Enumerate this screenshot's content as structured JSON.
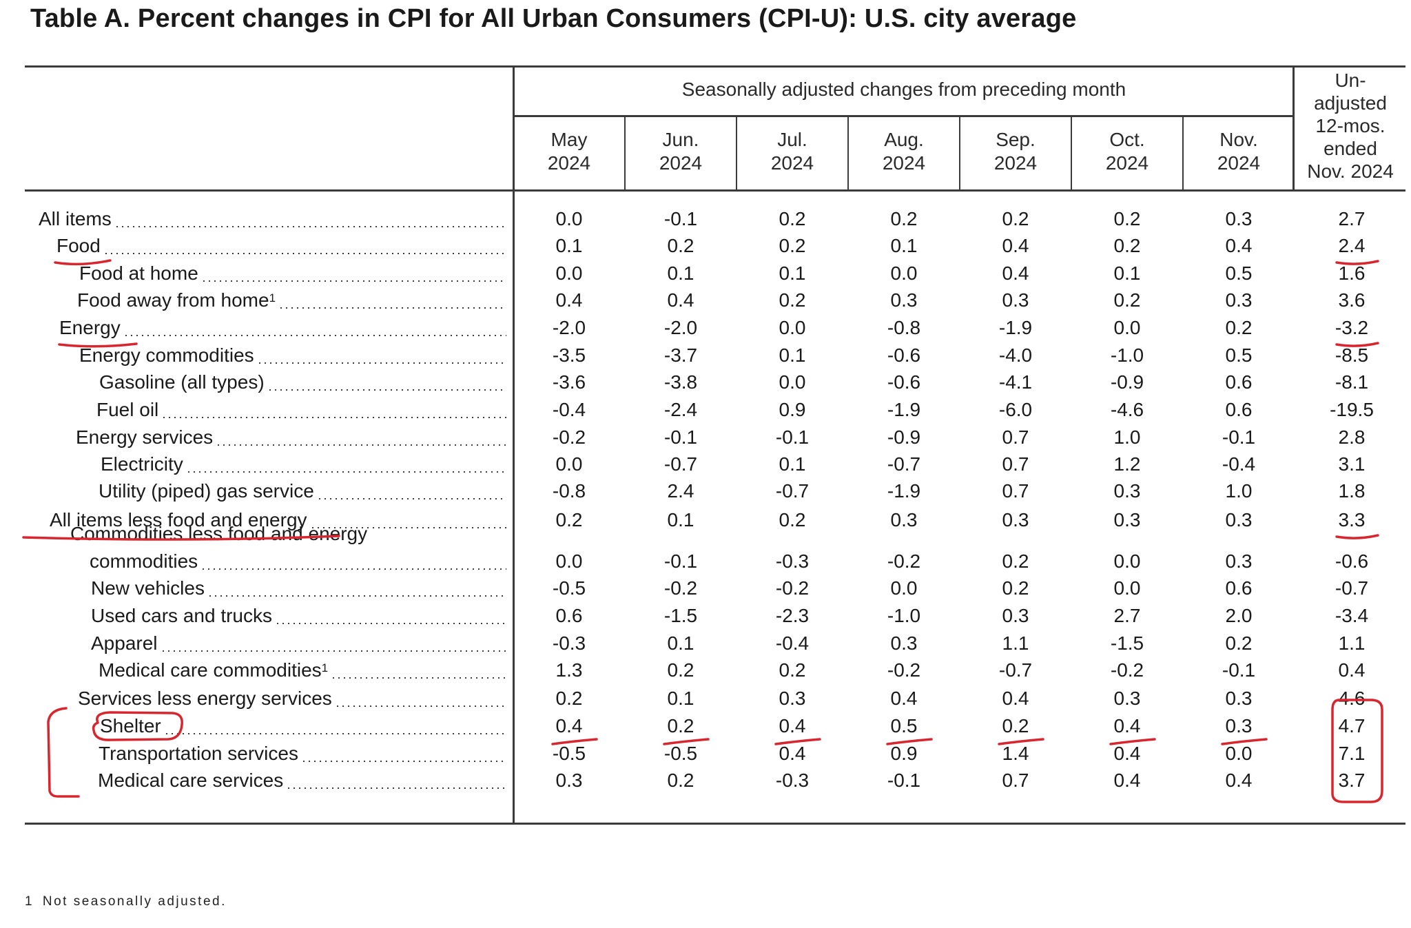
{
  "title": "Table A. Percent changes in CPI for All Urban Consumers (CPI-U): U.S. city average",
  "band_header": "Seasonally adjusted changes from preceding month",
  "months": [
    {
      "line1": "May",
      "line2": "2024"
    },
    {
      "line1": "Jun.",
      "line2": "2024"
    },
    {
      "line1": "Jul.",
      "line2": "2024"
    },
    {
      "line1": "Aug.",
      "line2": "2024"
    },
    {
      "line1": "Sep.",
      "line2": "2024"
    },
    {
      "line1": "Oct.",
      "line2": "2024"
    },
    {
      "line1": "Nov.",
      "line2": "2024"
    }
  ],
  "unadjusted_header": [
    "Un-",
    "adjusted",
    "12-mos.",
    "ended",
    "Nov. 2024"
  ],
  "rows": [
    {
      "label": "All items",
      "values": [
        "0.0",
        "-0.1",
        "0.2",
        "0.2",
        "0.2",
        "0.2",
        "0.3"
      ],
      "twelve_month": "2.7"
    },
    {
      "label": "Food",
      "values": [
        "0.1",
        "0.2",
        "0.2",
        "0.1",
        "0.4",
        "0.2",
        "0.4"
      ],
      "twelve_month": "2.4"
    },
    {
      "label": "Food at home",
      "values": [
        "0.0",
        "0.1",
        "0.1",
        "0.0",
        "0.4",
        "0.1",
        "0.5"
      ],
      "twelve_month": "1.6"
    },
    {
      "label": "Food away from home",
      "footnote": "1",
      "values": [
        "0.4",
        "0.4",
        "0.2",
        "0.3",
        "0.3",
        "0.2",
        "0.3"
      ],
      "twelve_month": "3.6"
    },
    {
      "label": "Energy",
      "values": [
        "-2.0",
        "-2.0",
        "0.0",
        "-0.8",
        "-1.9",
        "0.0",
        "0.2"
      ],
      "twelve_month": "-3.2"
    },
    {
      "label": "Energy commodities",
      "values": [
        "-3.5",
        "-3.7",
        "0.1",
        "-0.6",
        "-4.0",
        "-1.0",
        "0.5"
      ],
      "twelve_month": "-8.5"
    },
    {
      "label": "Gasoline (all types)",
      "values": [
        "-3.6",
        "-3.8",
        "0.0",
        "-0.6",
        "-4.1",
        "-0.9",
        "0.6"
      ],
      "twelve_month": "-8.1"
    },
    {
      "label": "Fuel oil",
      "values": [
        "-0.4",
        "-2.4",
        "0.9",
        "-1.9",
        "-6.0",
        "-4.6",
        "0.6"
      ],
      "twelve_month": "-19.5"
    },
    {
      "label": "Energy services",
      "values": [
        "-0.2",
        "-0.1",
        "-0.1",
        "-0.9",
        "0.7",
        "1.0",
        "-0.1"
      ],
      "twelve_month": "2.8"
    },
    {
      "label": "Electricity",
      "values": [
        "0.0",
        "-0.7",
        "0.1",
        "-0.7",
        "0.7",
        "1.2",
        "-0.4"
      ],
      "twelve_month": "3.1"
    },
    {
      "label": "Utility (piped) gas service",
      "values": [
        "-0.8",
        "2.4",
        "-0.7",
        "-1.9",
        "0.7",
        "0.3",
        "1.0"
      ],
      "twelve_month": "1.8"
    },
    {
      "label": "All items less food and energy",
      "values": [
        "0.2",
        "0.1",
        "0.2",
        "0.3",
        "0.3",
        "0.3",
        "0.3"
      ],
      "twelve_month": "3.3"
    },
    {
      "label": "Commodities less food and energy",
      "label_line2": "commodities",
      "values": [
        "0.0",
        "-0.1",
        "-0.3",
        "-0.2",
        "0.2",
        "0.0",
        "0.3"
      ],
      "twelve_month": "-0.6"
    },
    {
      "label": "New vehicles",
      "values": [
        "-0.5",
        "-0.2",
        "-0.2",
        "0.0",
        "0.2",
        "0.0",
        "0.6"
      ],
      "twelve_month": "-0.7"
    },
    {
      "label": "Used cars and trucks",
      "values": [
        "0.6",
        "-1.5",
        "-2.3",
        "-1.0",
        "0.3",
        "2.7",
        "2.0"
      ],
      "twelve_month": "-3.4"
    },
    {
      "label": "Apparel",
      "values": [
        "-0.3",
        "0.1",
        "-0.4",
        "0.3",
        "1.1",
        "-1.5",
        "0.2"
      ],
      "twelve_month": "1.1"
    },
    {
      "label": "Medical care commodities",
      "footnote": "1",
      "values": [
        "1.3",
        "0.2",
        "0.2",
        "-0.2",
        "-0.7",
        "-0.2",
        "-0.1"
      ],
      "twelve_month": "0.4"
    },
    {
      "label": "Services less energy services",
      "values": [
        "0.2",
        "0.1",
        "0.3",
        "0.4",
        "0.4",
        "0.3",
        "0.3"
      ],
      "twelve_month": "4.6"
    },
    {
      "label": "Shelter",
      "values": [
        "0.4",
        "0.2",
        "0.4",
        "0.5",
        "0.2",
        "0.4",
        "0.3"
      ],
      "twelve_month": "4.7"
    },
    {
      "label": "Transportation services",
      "values": [
        "-0.5",
        "-0.5",
        "0.4",
        "0.9",
        "1.4",
        "0.4",
        "0.0"
      ],
      "twelve_month": "7.1"
    },
    {
      "label": "Medical care services",
      "values": [
        "0.3",
        "0.2",
        "-0.3",
        "-0.1",
        "0.7",
        "0.4",
        "0.4"
      ],
      "twelve_month": "3.7"
    }
  ],
  "footnote": {
    "marker": "1",
    "text": "Not seasonally adjusted."
  },
  "annotation_color": "#d8262f"
}
